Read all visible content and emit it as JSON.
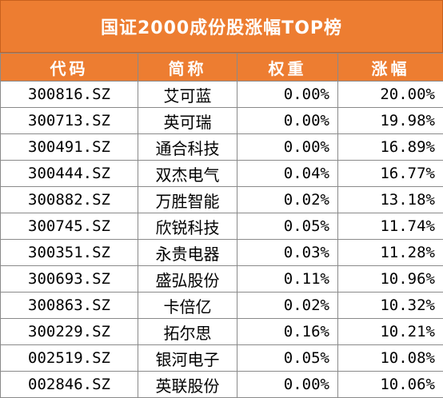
{
  "title": "国证2000成份股涨幅TOP榜",
  "colors": {
    "accent": "#ed7d31",
    "header_text": "#ffffff",
    "grid": "#8a8a8a"
  },
  "columns": [
    "代码",
    "简称",
    "权重",
    "涨幅"
  ],
  "rows": [
    {
      "code": "300816.SZ",
      "name": "艾可蓝",
      "weight": "0.00%",
      "change": "20.00%"
    },
    {
      "code": "300713.SZ",
      "name": "英可瑞",
      "weight": "0.00%",
      "change": "19.98%"
    },
    {
      "code": "300491.SZ",
      "name": "通合科技",
      "weight": "0.00%",
      "change": "16.89%"
    },
    {
      "code": "300444.SZ",
      "name": "双杰电气",
      "weight": "0.04%",
      "change": "16.77%"
    },
    {
      "code": "300882.SZ",
      "name": "万胜智能",
      "weight": "0.02%",
      "change": "13.18%"
    },
    {
      "code": "300745.SZ",
      "name": "欣锐科技",
      "weight": "0.05%",
      "change": "11.74%"
    },
    {
      "code": "300351.SZ",
      "name": "永贵电器",
      "weight": "0.03%",
      "change": "11.28%"
    },
    {
      "code": "300693.SZ",
      "name": "盛弘股份",
      "weight": "0.11%",
      "change": "10.96%"
    },
    {
      "code": "300863.SZ",
      "name": "卡倍亿",
      "weight": "0.02%",
      "change": "10.32%"
    },
    {
      "code": "300229.SZ",
      "name": "拓尔思",
      "weight": "0.16%",
      "change": "10.21%"
    },
    {
      "code": "002519.SZ",
      "name": "银河电子",
      "weight": "0.05%",
      "change": "10.08%"
    },
    {
      "code": "002846.SZ",
      "name": "英联股份",
      "weight": "0.00%",
      "change": "10.06%"
    }
  ]
}
